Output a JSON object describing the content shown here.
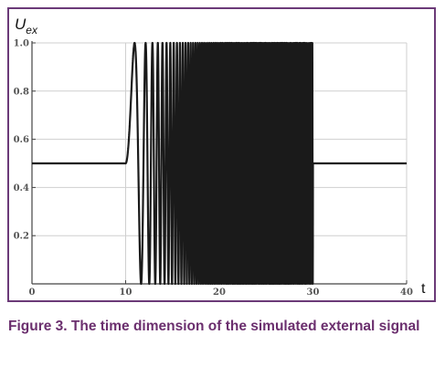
{
  "chart_data": {
    "type": "line",
    "title": "",
    "ylabel": "U",
    "ylabel_sub": "ex",
    "xlabel": "t",
    "xlim": [
      0,
      40
    ],
    "ylim": [
      0,
      1
    ],
    "x_ticks": [
      "0",
      "10",
      "20",
      "30",
      "40"
    ],
    "y_ticks": [
      "0.2",
      "0.4",
      "0.6",
      "0.8",
      "1.0"
    ],
    "grid": true,
    "series": [
      {
        "description": "constant 0.5 for t<10, chirp oscillation 0.5+0.5*sin(...) with increasing frequency from t=10 to t=30, then constant 0.5",
        "baseline": 0.5,
        "amplitude": 0.5,
        "segments": [
          {
            "x_start": 0,
            "x_end": 10,
            "y": 0.5
          },
          {
            "x_start": 10,
            "x_end": 30,
            "kind": "chirp",
            "min": 0.0,
            "max": 1.0
          },
          {
            "x_start": 30,
            "x_end": 40,
            "y": 0.5
          }
        ]
      }
    ],
    "line_color": "#1a1a1a"
  },
  "caption": "Figure 3. The time dimension of the simulated external signal"
}
